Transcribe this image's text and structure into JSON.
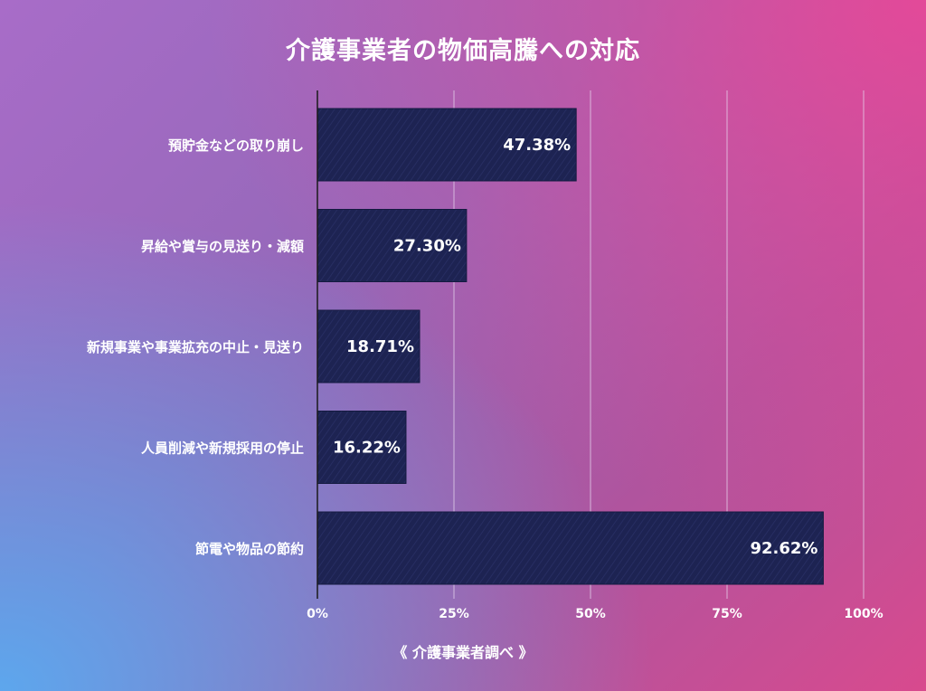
{
  "title": "介護事業者の物価高騰への対応",
  "source": "《 介護事業者調べ 》",
  "colors": {
    "bar": "#1d2352",
    "grid": "#e6d6ee",
    "axis": "#1a1a1a"
  },
  "chart_data": {
    "type": "bar",
    "orientation": "horizontal",
    "title": "介護事業者の物価高騰への対応",
    "categories": [
      "預貯金などの取り崩し",
      "昇給や賞与の見送り・減額",
      "新規事業や事業拡充の中止・見送り",
      "人員削減や新規採用の停止",
      "節電や物品の節約"
    ],
    "values": [
      47.38,
      27.3,
      18.71,
      16.22,
      92.62
    ],
    "value_labels": [
      "47.38%",
      "27.30%",
      "18.71%",
      "16.22%",
      "92.62%"
    ],
    "xlim": [
      0,
      100
    ],
    "xticks": [
      0,
      25,
      50,
      75,
      100
    ],
    "xtick_labels": [
      "0%",
      "25%",
      "50%",
      "75%",
      "100%"
    ],
    "grid": true,
    "legend": "none"
  }
}
